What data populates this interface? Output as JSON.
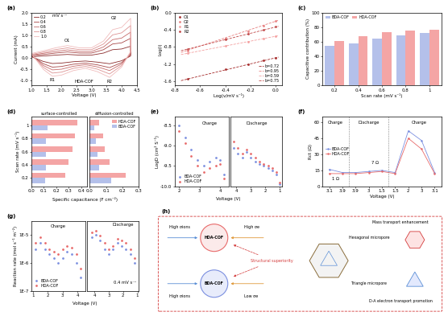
{
  "chart_data": [
    {
      "type": "line",
      "title": "(a)",
      "xlabel": "Voltage (V)",
      "ylabel": "Current (mA)",
      "xlim": [
        1.0,
        4.5
      ],
      "xticks": [
        1.0,
        1.5,
        2.0,
        2.5,
        3.0,
        3.5,
        4.0,
        4.5
      ],
      "ylim": [
        -1.2,
        2.0
      ],
      "yticks": [
        -1.0,
        -0.5,
        0.0,
        0.5,
        1.0,
        1.5,
        2.0
      ],
      "legend": "upper left",
      "x": [
        1.0,
        1.5,
        1.8,
        2.2,
        2.6,
        3.0,
        3.4,
        3.7,
        4.0,
        4.3,
        4.3,
        4.0,
        3.6,
        3.2,
        2.8,
        2.4,
        2.0,
        1.7,
        1.4,
        1.0
      ],
      "series": [
        {
          "name": "0.2",
          "color": "#8b2c2c",
          "values": [
            0.06,
            0.1,
            0.13,
            0.16,
            0.13,
            0.13,
            0.22,
            0.37,
            0.4,
            0.52,
            0.09,
            -0.12,
            -0.25,
            -0.18,
            -0.13,
            -0.16,
            -0.22,
            -0.24,
            -0.15,
            0.06
          ]
        },
        {
          "name": "0.4",
          "color": "#a84848",
          "values": [
            0.1,
            0.17,
            0.22,
            0.27,
            0.22,
            0.22,
            0.37,
            0.62,
            0.67,
            0.87,
            0.15,
            -0.2,
            -0.42,
            -0.3,
            -0.22,
            -0.27,
            -0.37,
            -0.4,
            -0.25,
            0.1
          ]
        },
        {
          "name": "0.6",
          "color": "#c56b6b",
          "values": [
            0.13,
            0.23,
            0.29,
            0.36,
            0.29,
            0.29,
            0.49,
            0.81,
            0.88,
            1.14,
            0.2,
            -0.26,
            -0.55,
            -0.39,
            -0.29,
            -0.36,
            -0.49,
            -0.52,
            -0.33,
            0.13
          ]
        },
        {
          "name": "0.8",
          "color": "#dc9393",
          "values": [
            0.16,
            0.29,
            0.37,
            0.45,
            0.37,
            0.37,
            0.62,
            1.02,
            1.11,
            1.43,
            0.25,
            -0.33,
            -0.7,
            -0.49,
            -0.37,
            -0.45,
            -0.62,
            -0.66,
            -0.41,
            0.16
          ]
        },
        {
          "name": "1.0",
          "color": "#f0bcbc",
          "values": [
            0.2,
            0.35,
            0.45,
            0.55,
            0.45,
            0.45,
            0.75,
            1.25,
            1.35,
            1.75,
            0.3,
            -0.4,
            -0.85,
            -0.6,
            -0.45,
            -0.55,
            -0.75,
            -0.8,
            -0.5,
            0.2
          ]
        }
      ],
      "annotations": [
        {
          "text": "mV s⁻¹",
          "x": 1.95,
          "y": 1.85
        },
        {
          "text": "O1",
          "x": 2.2,
          "y": 0.78
        },
        {
          "text": "O2",
          "x": 3.75,
          "y": 1.75
        },
        {
          "text": "R1",
          "x": 1.7,
          "y": -0.98
        },
        {
          "text": "R2",
          "x": 3.6,
          "y": -1.03
        },
        {
          "text": "HDA-COF",
          "x": 2.75,
          "y": -1.05
        }
      ]
    },
    {
      "type": "scatter",
      "title": "(b)",
      "xlabel": "Log(v/mV s⁻¹)",
      "ylabel": "Log(i)",
      "xlim": [
        -0.8,
        0.05
      ],
      "xticks": [
        -0.8,
        -0.6,
        -0.4,
        -0.2,
        0.0
      ],
      "ylim": [
        -1.7,
        0.0
      ],
      "yticks": [
        -1.6,
        -1.2,
        -0.8,
        -0.4,
        0.0
      ],
      "legend": "upper left",
      "series": [
        {
          "name": "O1",
          "color": "#a52a2a",
          "marker": "circle",
          "x": [
            -0.7,
            -0.4,
            -0.22,
            -0.1,
            0.0
          ],
          "values": [
            -1.55,
            -1.33,
            -1.2,
            -1.12,
            -1.05
          ]
        },
        {
          "name": "O2",
          "color": "#e88080",
          "marker": "circle",
          "x": [
            -0.7,
            -0.4,
            -0.22,
            -0.1,
            0.0
          ],
          "values": [
            -0.88,
            -0.6,
            -0.43,
            -0.3,
            -0.2
          ]
        },
        {
          "name": "R1",
          "color": "#f4a0a0",
          "marker": "circle",
          "x": [
            -0.7,
            -0.4,
            -0.22,
            -0.1,
            0.0
          ],
          "values": [
            -0.95,
            -0.78,
            -0.68,
            -0.61,
            -0.55
          ]
        },
        {
          "name": "R2",
          "color": "#c04848",
          "marker": "circle",
          "x": [
            -0.7,
            -0.4,
            -0.22,
            -0.1,
            0.0
          ],
          "values": [
            -0.85,
            -0.62,
            -0.49,
            -0.4,
            -0.33
          ]
        },
        {
          "name": "b=0.72",
          "type": "line",
          "line_style": "dashed",
          "color": "#a52a2a",
          "x": [
            -0.75,
            0.02
          ],
          "values": [
            -1.59,
            -1.04
          ]
        },
        {
          "name": "b=0.95",
          "type": "line",
          "line_style": "dashed",
          "color": "#e88080",
          "x": [
            -0.75,
            0.02
          ],
          "values": [
            -0.93,
            -0.18
          ]
        },
        {
          "name": "b=0.59",
          "type": "line",
          "line_style": "dashed",
          "color": "#f4a0a0",
          "x": [
            -0.75,
            0.02
          ],
          "values": [
            -0.98,
            -0.54
          ]
        },
        {
          "name": "b=0.75",
          "type": "line",
          "line_style": "dashed",
          "color": "#c04848",
          "x": [
            -0.75,
            0.02
          ],
          "values": [
            -0.89,
            -0.32
          ]
        }
      ]
    },
    {
      "type": "bar",
      "title": "(c)",
      "xlabel": "Scan rate (mV s⁻¹)",
      "ylabel": "Capacitive contribution (%)",
      "categories": [
        "0.2",
        "0.4",
        "0.6",
        "0.8",
        "1"
      ],
      "ylim": [
        0,
        100
      ],
      "yticks": [
        0,
        20,
        40,
        60,
        80,
        100
      ],
      "legend": "upper left",
      "series": [
        {
          "name": "BDA-COF",
          "color": "#b4c0ea",
          "values": [
            54,
            58,
            64,
            69,
            72
          ]
        },
        {
          "name": "HDA-COF",
          "color": "#f4a5a5",
          "values": [
            61,
            68,
            73,
            75,
            77
          ]
        }
      ]
    },
    {
      "type": "bar",
      "orientation": "horizontal",
      "title": "(d)",
      "subtitle": "surface-controlled",
      "xlabel": "Specific capacitance (F cm⁻²)",
      "ylabel": "Scan rate (mV s⁻¹)",
      "categories": [
        "0.2",
        "0.4",
        "0.6",
        "0.8",
        "1"
      ],
      "xlim": [
        0,
        0.45
      ],
      "xticks": [
        0.0,
        0.1,
        0.2,
        0.3,
        0.4
      ],
      "series": [
        {
          "name": "HDA-COF",
          "color": "#f4a5a5",
          "values": [
            0.27,
            0.3,
            0.33,
            0.35,
            0.37
          ]
        },
        {
          "name": "BDA-COF",
          "color": "#b4c0ea",
          "values": [
            0.11,
            0.12,
            0.12,
            0.12,
            0.13
          ]
        }
      ]
    },
    {
      "type": "bar",
      "orientation": "horizontal",
      "subtitle": "diffusion-controlled",
      "tick_labels": "x",
      "categories": [
        "0.2",
        "0.4",
        "0.6",
        "0.8",
        "1"
      ],
      "xlim": [
        0,
        0.3
      ],
      "xticks": [
        0.0,
        0.1,
        0.2,
        0.3
      ],
      "legend": "upper right",
      "series": [
        {
          "name": "HDA-COF",
          "color": "#f4a5a5",
          "values": [
            0.22,
            0.12,
            0.09,
            0.08,
            0.06
          ]
        },
        {
          "name": "BDA-COF",
          "color": "#b4c0ea",
          "values": [
            0.13,
            0.06,
            0.05,
            0.04,
            0.03
          ]
        }
      ]
    },
    {
      "type": "scatter",
      "title": "(e)",
      "xlabel": "Voltage (V)",
      "ylabel": "LogD (cm² S⁻¹)",
      "xlim": [
        1.8,
        4.4
      ],
      "xticks": [
        2,
        3,
        4
      ],
      "ylim": [
        -10.0,
        -8.3
      ],
      "yticks": [
        -10.0,
        -9.5,
        -9.0,
        -8.5
      ],
      "legend": "lower left",
      "x": [
        2.0,
        2.3,
        2.6,
        2.9,
        3.2,
        3.5,
        3.8,
        4.0,
        4.2
      ],
      "series": [
        {
          "name": "BDA-COF",
          "color": "#7b8fe0",
          "marker": "circle",
          "values": [
            -8.5,
            -8.8,
            -9.1,
            -9.35,
            -9.5,
            -9.4,
            -9.3,
            -9.35,
            -9.7
          ]
        },
        {
          "name": "HDA-COF",
          "color": "#e86a6a",
          "marker": "circle",
          "values": [
            -8.65,
            -8.95,
            -9.25,
            -9.5,
            -9.65,
            -9.55,
            -9.5,
            -9.45,
            -9.8
          ]
        }
      ],
      "annotations": [
        {
          "text": "Charge",
          "x": 3.5,
          "y": -8.45
        }
      ]
    },
    {
      "type": "scatter",
      "tick_labels": "x",
      "xlim": [
        4.4,
        0.8
      ],
      "xticks": [
        4,
        3,
        2,
        1
      ],
      "ylim": [
        -10.0,
        -8.3
      ],
      "x": [
        4.2,
        3.9,
        3.6,
        3.3,
        3.0,
        2.7,
        2.4,
        2.1,
        1.8,
        1.5,
        1.2,
        1.0
      ],
      "series": [
        {
          "name": "BDA-COF",
          "color": "#7b8fe0",
          "marker": "circle",
          "values": [
            -9.05,
            -9.2,
            -9.3,
            -9.15,
            -9.3,
            -9.4,
            -9.45,
            -9.5,
            -9.55,
            -9.6,
            -9.7,
            -9.95
          ]
        },
        {
          "name": "HDA-COF",
          "color": "#e86a6a",
          "marker": "circle",
          "values": [
            -8.9,
            -9.05,
            -9.2,
            -9.1,
            -9.2,
            -9.3,
            -9.4,
            -9.45,
            -9.5,
            -9.55,
            -9.65,
            -9.9
          ]
        }
      ],
      "annotations": [
        {
          "text": "Discharge",
          "x": 2.6,
          "y": -8.45
        }
      ]
    },
    {
      "type": "line",
      "title": "(f)",
      "xlabel": "Voltage (V)",
      "ylabel": "Rct (Ω)",
      "categories": [
        "3.1",
        "3.9",
        "3.9",
        "3",
        "1.5",
        "1.5",
        "2",
        "3",
        "3.1"
      ],
      "ylim": [
        0,
        65
      ],
      "yticks": [
        0,
        15,
        30,
        45,
        60
      ],
      "legend": "center left",
      "series": [
        {
          "name": "BDA-COF",
          "color": "#7b8fe0",
          "marker": "circle",
          "values": [
            16,
            13,
            13,
            14,
            15,
            13,
            52,
            43,
            13
          ]
        },
        {
          "name": "HDA-COF",
          "color": "#e86a6a",
          "marker": "circle",
          "values": [
            12,
            12,
            12,
            13,
            14,
            12,
            45,
            35,
            12
          ]
        }
      ],
      "annotations": [
        {
          "text": "Charge",
          "x": 0.5,
          "y": 60
        },
        {
          "text": "Discharge",
          "x": 3.0,
          "y": 60
        },
        {
          "text": "Charge",
          "x": 6.8,
          "y": 60
        },
        {
          "text": "1 Ω",
          "x": 0.5,
          "y": 7
        },
        {
          "text": "7 Ω",
          "x": 3.5,
          "y": 22
        }
      ]
    },
    {
      "type": "scatter",
      "title": "(g)",
      "xlabel": "Voltage (V)",
      "ylabel": "Reaction rate (mol s⁻¹ m⁻²)",
      "log": "y",
      "xlim": [
        0.9,
        4.5
      ],
      "xticks": [
        1,
        2,
        3,
        4
      ],
      "ylim": [
        1e-07,
        3e-05
      ],
      "yticks": [
        {
          "value": 1e-07,
          "label": "1E-7"
        },
        {
          "value": 1e-06,
          "label": "1E-6"
        },
        {
          "value": 1e-05,
          "label": "1E-5"
        }
      ],
      "legend": "lower left",
      "x": [
        1.2,
        1.5,
        1.8,
        2.1,
        2.4,
        2.7,
        3.0,
        3.3,
        3.6,
        3.9,
        4.2
      ],
      "series": [
        {
          "name": "BDA-COF",
          "color": "#7b8fe0",
          "marker": "circle",
          "values": [
            3e-06,
            5e-06,
            3e-06,
            2e-06,
            1.5e-06,
            1e-06,
            1.5e-06,
            2.5e-06,
            2e-06,
            1e-06,
            3e-07
          ]
        },
        {
          "name": "HDA-COF",
          "color": "#e86a6a",
          "marker": "circle",
          "values": [
            5e-06,
            8e-06,
            5e-06,
            3e-06,
            2.5e-06,
            2e-06,
            3e-06,
            4e-06,
            3.5e-06,
            2e-06,
            6e-07
          ]
        }
      ],
      "annotations": [
        {
          "text": "Charge",
          "x": 2.7,
          "y": 2e-05
        }
      ]
    },
    {
      "type": "scatter",
      "tick_labels": "x",
      "log": "y",
      "xlim": [
        4.5,
        0.9
      ],
      "xticks": [
        4,
        3,
        2,
        1
      ],
      "ylim": [
        1e-07,
        3e-05
      ],
      "x": [
        4.2,
        3.9,
        3.6,
        3.3,
        3.0,
        2.7,
        2.4,
        2.1,
        1.8,
        1.5,
        1.2
      ],
      "series": [
        {
          "name": "BDA-COF",
          "color": "#7b8fe0",
          "marker": "circle",
          "values": [
            8e-06,
            1e-05,
            6e-06,
            3e-06,
            2e-06,
            3e-06,
            5e-06,
            4e-06,
            3e-06,
            2e-06,
            1e-06
          ]
        },
        {
          "name": "HDA-COF",
          "color": "#e86a6a",
          "marker": "circle",
          "values": [
            1.2e-05,
            1.4e-05,
            9e-06,
            5e-06,
            3e-06,
            4e-06,
            7e-06,
            6e-06,
            5e-06,
            3e-06,
            1.5e-06
          ]
        }
      ],
      "annotations": [
        {
          "text": "Discharge",
          "x": 2.0,
          "y": 2.2e-05
        },
        {
          "text": "0.4 mV s⁻¹",
          "x": 1.9,
          "y": 2e-07
        }
      ]
    }
  ],
  "diagram": {
    "title": "(h)",
    "cofs": [
      {
        "name": "HDA-COF",
        "ion": "High σions",
        "electron": "High σe"
      },
      {
        "name": "BDA-COF",
        "ion": "High σions",
        "electron": "Low σe"
      }
    ],
    "center": "Structural superiority",
    "pores": [
      {
        "name": "Hexagonal micropore",
        "effect": "Mass transport enhancement"
      },
      {
        "name": "Triangle micropore",
        "effect": "D-A electron transport promotion"
      }
    ]
  }
}
